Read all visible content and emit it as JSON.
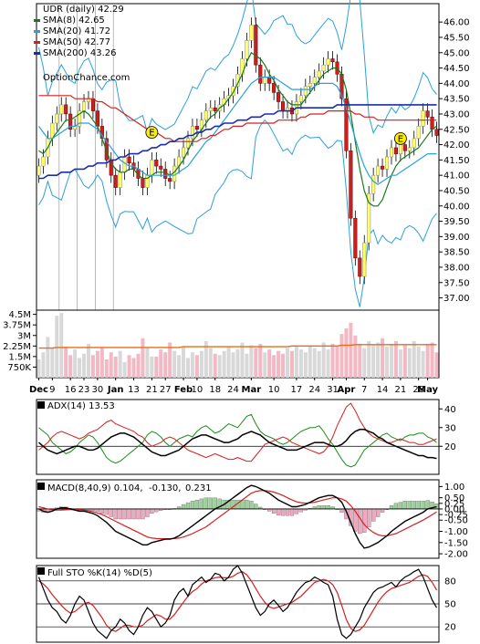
{
  "chart_data": [
    {
      "type": "candlestick",
      "title": "UDR (daily) 42.29",
      "legend": [
        {
          "label": "SMA(8) 42.65",
          "color": "#1a7a1a"
        },
        {
          "label": "SMA(20) 41.72",
          "color": "#2aa0dc"
        },
        {
          "label": "SMA(50) 42.77",
          "color": "#d42020"
        },
        {
          "label": "SMA(200) 43.26",
          "color": "#1a2db0"
        }
      ],
      "watermark": "OptionChance.com",
      "y_ticks": [
        "46.00",
        "45.50",
        "45.00",
        "44.50",
        "44.00",
        "43.50",
        "43.00",
        "42.50",
        "42.00",
        "41.50",
        "41.00",
        "40.50",
        "40.00",
        "39.50",
        "39.00",
        "38.50",
        "38.00",
        "37.50",
        "37.00"
      ],
      "ylim": [
        36.6,
        46.6
      ],
      "events": [
        "E",
        "E"
      ],
      "close": [
        41.3,
        41.6,
        42.2,
        42.7,
        43.0,
        43.3,
        43.0,
        42.5,
        42.6,
        43.1,
        43.4,
        43.5,
        43.1,
        42.6,
        42.2,
        41.5,
        41.0,
        40.6,
        41.1,
        41.6,
        41.4,
        41.2,
        40.9,
        40.6,
        41.0,
        41.5,
        41.3,
        41.2,
        40.9,
        40.8,
        41.3,
        41.6,
        41.9,
        42.2,
        42.6,
        42.5,
        42.8,
        43.1,
        43.2,
        43.1,
        43.3,
        43.5,
        43.6,
        43.9,
        44.3,
        44.8,
        45.4,
        45.9,
        44.6,
        44.0,
        44.2,
        44.0,
        43.7,
        43.4,
        43.1,
        43.2,
        43.0,
        43.4,
        43.6,
        43.9,
        44.0,
        44.2,
        44.4,
        44.6,
        44.8,
        44.7,
        44.3,
        43.5,
        41.8,
        39.6,
        38.3,
        37.7,
        38.8,
        40.4,
        41.0,
        41.3,
        41.2,
        41.6,
        41.9,
        41.7,
        42.0,
        41.8,
        41.9,
        42.2,
        42.6,
        43.1,
        42.9,
        42.5,
        42.3
      ],
      "sma8": [
        41.8,
        41.7,
        41.9,
        42.2,
        42.4,
        42.6,
        42.8,
        42.8,
        42.9,
        43.0,
        43.1,
        43.0,
        42.8,
        42.6,
        42.2,
        41.8,
        41.4,
        41.2,
        41.1,
        41.1,
        41.2,
        41.2,
        41.0,
        40.9,
        40.9,
        41.0,
        41.1,
        41.1,
        41.1,
        41.0,
        41.1,
        41.3,
        41.5,
        41.8,
        42.1,
        42.3,
        42.5,
        42.7,
        42.9,
        43.0,
        43.2,
        43.3,
        43.5,
        43.7,
        44.0,
        44.3,
        44.7,
        45.0,
        44.9,
        44.8,
        44.6,
        44.3,
        44.1,
        43.8,
        43.6,
        43.4,
        43.3,
        43.3,
        43.3,
        43.5,
        43.7,
        43.9,
        44.1,
        44.3,
        44.4,
        44.5,
        44.5,
        44.3,
        43.8,
        43.0,
        42.1,
        41.2,
        40.5,
        40.1,
        40.0,
        40.0,
        40.2,
        40.6,
        41.0,
        41.3,
        41.5,
        41.6,
        41.7,
        41.8,
        41.9,
        42.1,
        42.3,
        42.5,
        42.6
      ],
      "sma20": [
        42.6,
        42.4,
        42.2,
        42.2,
        42.3,
        42.4,
        42.5,
        42.6,
        42.6,
        42.7,
        42.7,
        42.7,
        42.6,
        42.5,
        42.3,
        42.1,
        41.9,
        41.7,
        41.5,
        41.4,
        41.3,
        41.3,
        41.2,
        41.1,
        41.0,
        41.0,
        41.0,
        41.0,
        41.0,
        41.0,
        41.0,
        41.1,
        41.2,
        41.3,
        41.5,
        41.7,
        41.9,
        42.1,
        42.2,
        42.4,
        42.6,
        42.8,
        43.0,
        43.2,
        43.4,
        43.6,
        43.8,
        44.0,
        44.1,
        44.2,
        44.2,
        44.2,
        44.2,
        44.1,
        44.0,
        43.9,
        43.8,
        43.8,
        43.8,
        43.8,
        43.8,
        43.9,
        44.0,
        44.0,
        44.0,
        44.0,
        43.9,
        43.6,
        43.2,
        42.7,
        42.2,
        41.7,
        41.3,
        41.0,
        40.8,
        40.7,
        40.8,
        40.9,
        41.0,
        41.0,
        41.1,
        41.2,
        41.3,
        41.4,
        41.5,
        41.6,
        41.7,
        41.7,
        41.7
      ],
      "sma50": [
        43.6,
        43.6,
        43.6,
        43.6,
        43.6,
        43.6,
        43.6,
        43.6,
        43.5,
        43.5,
        43.5,
        43.5,
        43.5,
        43.4,
        43.4,
        43.3,
        43.2,
        43.2,
        43.1,
        43.0,
        42.9,
        42.8,
        42.7,
        42.6,
        42.5,
        42.5,
        42.4,
        42.3,
        42.2,
        42.2,
        42.1,
        42.1,
        42.1,
        42.1,
        42.1,
        42.1,
        42.2,
        42.2,
        42.3,
        42.3,
        42.4,
        42.5,
        42.5,
        42.6,
        42.6,
        42.6,
        42.7,
        42.7,
        42.7,
        42.7,
        42.7,
        42.7,
        42.7,
        42.8,
        42.8,
        42.8,
        42.8,
        42.8,
        42.9,
        42.9,
        43.0,
        43.0,
        43.0,
        43.0,
        43.1,
        43.1,
        43.1,
        43.1,
        43.1,
        43.1,
        43.0,
        43.0,
        42.9,
        42.9,
        42.9,
        42.8,
        42.8,
        42.8,
        42.8,
        42.8,
        42.8,
        42.8,
        42.8,
        42.8,
        42.8,
        42.8,
        42.8,
        42.8,
        42.8
      ],
      "sma200": [
        40.9,
        40.9,
        41.0,
        41.0,
        41.0,
        41.1,
        41.1,
        41.1,
        41.2,
        41.2,
        41.2,
        41.3,
        41.3,
        41.4,
        41.4,
        41.4,
        41.5,
        41.5,
        41.6,
        41.6,
        41.7,
        41.7,
        41.7,
        41.8,
        41.8,
        41.9,
        41.9,
        42.0,
        42.0,
        42.1,
        42.1,
        42.2,
        42.2,
        42.3,
        42.3,
        42.4,
        42.4,
        42.5,
        42.5,
        42.6,
        42.6,
        42.7,
        42.7,
        42.7,
        42.8,
        42.8,
        42.8,
        42.9,
        42.9,
        42.9,
        43.0,
        43.0,
        43.0,
        43.1,
        43.1,
        43.1,
        43.1,
        43.2,
        43.2,
        43.2,
        43.2,
        43.2,
        43.2,
        43.2,
        43.2,
        43.2,
        43.3,
        43.3,
        43.3,
        43.3,
        43.3,
        43.3,
        43.3,
        43.3,
        43.3,
        43.3,
        43.3,
        43.3,
        43.3,
        43.3,
        43.3,
        43.3,
        43.3,
        43.3,
        43.3,
        43.3,
        43.3,
        43.3,
        43.3
      ]
    },
    {
      "type": "bar",
      "title": "Volume",
      "y_ticks": [
        "4.5M",
        "3.75M",
        "3M",
        "2.25M",
        "1.5M",
        "750K"
      ],
      "ylim": [
        0,
        4500000
      ],
      "values": [
        1.3,
        1.8,
        2.9,
        2.1,
        4.4,
        4.6,
        2.2,
        1.6,
        2.0,
        1.4,
        1.7,
        2.4,
        1.6,
        1.9,
        2.1,
        1.3,
        1.8,
        1.5,
        1.9,
        1.1,
        1.6,
        1.4,
        1.7,
        2.8,
        2.1,
        1.5,
        1.5,
        2.0,
        1.8,
        2.5,
        1.9,
        1.6,
        2.2,
        1.4,
        1.8,
        1.6,
        1.9,
        2.6,
        2.1,
        1.7,
        1.6,
        1.9,
        2.2,
        1.8,
        2.0,
        2.5,
        1.7,
        2.3,
        2.1,
        2.4,
        1.8,
        2.0,
        1.6,
        1.9,
        1.7,
        2.1,
        1.9,
        2.2,
        2.0,
        1.8,
        2.3,
        2.1,
        1.9,
        2.5,
        2.0,
        2.4,
        2.2,
        3.1,
        3.5,
        3.9,
        3.0,
        2.4,
        2.1,
        2.6,
        2.3,
        2.5,
        2.8,
        2.2,
        2.4,
        2.6,
        2.0,
        2.3,
        2.1,
        2.6,
        2.2,
        1.9,
        2.3,
        2.5,
        1.8
      ],
      "avg": [
        2.1,
        2.1,
        2.1,
        2.1,
        2.15,
        2.15,
        2.15,
        2.15,
        2.15,
        2.15,
        2.15,
        2.15,
        2.15,
        2.15,
        2.15,
        2.15,
        2.15,
        2.15,
        2.15,
        2.15,
        2.15,
        2.15,
        2.15,
        2.15,
        2.15,
        2.15,
        2.15,
        2.15,
        2.15,
        2.15,
        2.15,
        2.15,
        2.2,
        2.2,
        2.2,
        2.2,
        2.2,
        2.2,
        2.2,
        2.2,
        2.2,
        2.2,
        2.2,
        2.2,
        2.2,
        2.2,
        2.2,
        2.2,
        2.2,
        2.2,
        2.2,
        2.2,
        2.2,
        2.2,
        2.2,
        2.2,
        2.25,
        2.25,
        2.25,
        2.25,
        2.25,
        2.25,
        2.25,
        2.25,
        2.25,
        2.25,
        2.25,
        2.3,
        2.3,
        2.3,
        2.35,
        2.35,
        2.35,
        2.35,
        2.35,
        2.35,
        2.35,
        2.35,
        2.35,
        2.35,
        2.35,
        2.35,
        2.35,
        2.35,
        2.35,
        2.35,
        2.35,
        2.35,
        2.35
      ]
    },
    {
      "type": "line",
      "title": "ADX(14) 13.53",
      "y_ticks": [
        "40",
        "30",
        "20"
      ],
      "ylim": [
        5,
        45
      ],
      "adx": [
        22,
        20,
        18,
        17,
        16,
        17,
        18,
        19,
        20,
        20,
        19,
        18,
        18,
        19,
        21,
        23,
        25,
        26,
        27,
        27,
        26,
        25,
        23,
        21,
        19,
        17,
        16,
        15,
        15,
        16,
        17,
        18,
        20,
        22,
        24,
        25,
        26,
        26,
        25,
        24,
        23,
        22,
        22,
        23,
        24,
        26,
        27,
        28,
        27,
        26,
        24,
        22,
        21,
        20,
        19,
        18,
        18,
        18,
        19,
        20,
        21,
        22,
        22,
        22,
        21,
        20,
        20,
        21,
        23,
        26,
        28,
        29,
        29,
        28,
        27,
        25,
        24,
        22,
        21,
        20,
        19,
        18,
        17,
        16,
        15,
        15,
        14,
        14,
        13.5
      ],
      "plus_di": [
        30,
        28,
        26,
        22,
        20,
        18,
        16,
        17,
        19,
        22,
        24,
        26,
        25,
        22,
        18,
        14,
        12,
        11,
        12,
        14,
        16,
        18,
        20,
        22,
        26,
        28,
        27,
        25,
        22,
        20,
        22,
        24,
        25,
        26,
        25,
        28,
        30,
        31,
        29,
        27,
        28,
        30,
        32,
        31,
        30,
        33,
        36,
        37,
        32,
        28,
        26,
        25,
        24,
        22,
        21,
        22,
        24,
        26,
        28,
        29,
        30,
        30,
        31,
        28,
        24,
        21,
        17,
        13,
        10,
        9,
        10,
        14,
        18,
        20,
        22,
        24,
        26,
        27,
        25,
        24,
        23,
        25,
        26,
        26,
        27,
        27,
        25,
        24,
        22
      ],
      "minus_di": [
        18,
        20,
        22,
        25,
        27,
        28,
        27,
        26,
        25,
        24,
        25,
        27,
        28,
        29,
        31,
        33,
        34,
        32,
        31,
        30,
        29,
        28,
        26,
        25,
        22,
        20,
        21,
        22,
        24,
        25,
        24,
        22,
        20,
        18,
        17,
        16,
        15,
        14,
        15,
        16,
        15,
        14,
        13,
        13,
        14,
        13,
        12,
        12,
        15,
        18,
        21,
        22,
        23,
        24,
        25,
        24,
        22,
        21,
        20,
        19,
        18,
        17,
        16,
        17,
        20,
        25,
        31,
        36,
        41,
        43,
        39,
        34,
        30,
        27,
        25,
        24,
        23,
        22,
        22,
        23,
        24,
        23,
        22,
        22,
        21,
        21,
        22,
        23,
        24
      ]
    },
    {
      "type": "line",
      "title": "MACD(8,40,9) 0.104,",
      "values_label": [
        "-0.130,",
        "0.231"
      ],
      "y_ticks": [
        "1.00",
        "0.50",
        "0.25",
        "0.00",
        "-0.25",
        "-0.50",
        "-1.00",
        "-1.50",
        "-2.00"
      ],
      "ylim": [
        -2.2,
        1.3
      ],
      "macd": [
        0.0,
        -0.1,
        -0.15,
        -0.1,
        0.0,
        0.05,
        0.05,
        0.0,
        -0.05,
        -0.1,
        -0.1,
        -0.15,
        -0.2,
        -0.3,
        -0.45,
        -0.6,
        -0.8,
        -1.0,
        -1.1,
        -1.2,
        -1.3,
        -1.4,
        -1.5,
        -1.6,
        -1.6,
        -1.5,
        -1.45,
        -1.4,
        -1.35,
        -1.35,
        -1.3,
        -1.2,
        -1.05,
        -0.9,
        -0.75,
        -0.6,
        -0.45,
        -0.3,
        -0.15,
        0.0,
        0.1,
        0.2,
        0.35,
        0.5,
        0.65,
        0.8,
        0.95,
        1.05,
        1.0,
        0.9,
        0.8,
        0.7,
        0.55,
        0.4,
        0.3,
        0.2,
        0.1,
        0.1,
        0.15,
        0.2,
        0.3,
        0.4,
        0.5,
        0.55,
        0.6,
        0.6,
        0.5,
        0.3,
        -0.1,
        -0.6,
        -1.1,
        -1.5,
        -1.75,
        -1.7,
        -1.6,
        -1.5,
        -1.35,
        -1.2,
        -1.0,
        -0.85,
        -0.7,
        -0.55,
        -0.45,
        -0.35,
        -0.25,
        -0.15,
        0.0,
        0.05,
        0.1
      ],
      "signal": [
        0.1,
        0.05,
        0.0,
        -0.05,
        -0.05,
        -0.05,
        -0.04,
        -0.03,
        -0.03,
        -0.04,
        -0.06,
        -0.08,
        -0.12,
        -0.18,
        -0.25,
        -0.35,
        -0.45,
        -0.55,
        -0.65,
        -0.75,
        -0.85,
        -0.95,
        -1.05,
        -1.15,
        -1.25,
        -1.3,
        -1.32,
        -1.33,
        -1.33,
        -1.33,
        -1.32,
        -1.3,
        -1.25,
        -1.18,
        -1.1,
        -1.0,
        -0.9,
        -0.8,
        -0.65,
        -0.5,
        -0.35,
        -0.2,
        -0.05,
        0.1,
        0.25,
        0.4,
        0.55,
        0.7,
        0.78,
        0.82,
        0.82,
        0.8,
        0.75,
        0.68,
        0.6,
        0.5,
        0.4,
        0.32,
        0.28,
        0.26,
        0.27,
        0.3,
        0.35,
        0.4,
        0.45,
        0.5,
        0.5,
        0.45,
        0.35,
        0.15,
        -0.1,
        -0.4,
        -0.7,
        -0.9,
        -1.05,
        -1.15,
        -1.2,
        -1.2,
        -1.15,
        -1.1,
        -1.0,
        -0.9,
        -0.8,
        -0.7,
        -0.6,
        -0.5,
        -0.38,
        -0.26,
        -0.13
      ]
    },
    {
      "type": "line",
      "title": "Full STO %K(14) %D(5)",
      "y_ticks": [
        "80",
        "50",
        "20"
      ],
      "ylim": [
        0,
        100
      ],
      "k": [
        85,
        70,
        55,
        45,
        40,
        30,
        25,
        35,
        50,
        60,
        55,
        40,
        25,
        15,
        10,
        5,
        15,
        20,
        30,
        25,
        15,
        10,
        20,
        35,
        45,
        40,
        30,
        20,
        25,
        35,
        55,
        65,
        70,
        60,
        75,
        80,
        85,
        78,
        82,
        90,
        88,
        80,
        85,
        95,
        100,
        90,
        75,
        60,
        45,
        35,
        40,
        50,
        55,
        48,
        40,
        45,
        55,
        65,
        72,
        78,
        80,
        85,
        82,
        78,
        75,
        60,
        30,
        10,
        5,
        10,
        20,
        30,
        45,
        55,
        65,
        70,
        72,
        75,
        78,
        72,
        80,
        85,
        88,
        92,
        95,
        85,
        70,
        55,
        45
      ],
      "d": [
        80,
        76,
        70,
        62,
        55,
        48,
        42,
        38,
        40,
        45,
        50,
        52,
        48,
        40,
        32,
        22,
        16,
        14,
        18,
        22,
        22,
        20,
        20,
        22,
        28,
        32,
        36,
        34,
        30,
        30,
        36,
        44,
        52,
        60,
        66,
        70,
        76,
        80,
        82,
        84,
        85,
        84,
        84,
        86,
        90,
        92,
        88,
        80,
        70,
        60,
        52,
        46,
        44,
        46,
        48,
        50,
        52,
        56,
        60,
        66,
        72,
        78,
        80,
        82,
        80,
        75,
        65,
        48,
        30,
        18,
        14,
        16,
        22,
        32,
        42,
        52,
        60,
        66,
        70,
        72,
        74,
        76,
        78,
        82,
        86,
        88,
        86,
        78,
        68
      ]
    }
  ],
  "x_labels": [
    "Dec",
    "9",
    "16",
    "23",
    "30",
    "Jan",
    "13",
    "21",
    "27",
    "Feb",
    "10",
    "18",
    "24",
    "Mar",
    "10",
    "17",
    "24",
    "31",
    "Apr",
    "7",
    "14",
    "21",
    "28",
    "May"
  ]
}
